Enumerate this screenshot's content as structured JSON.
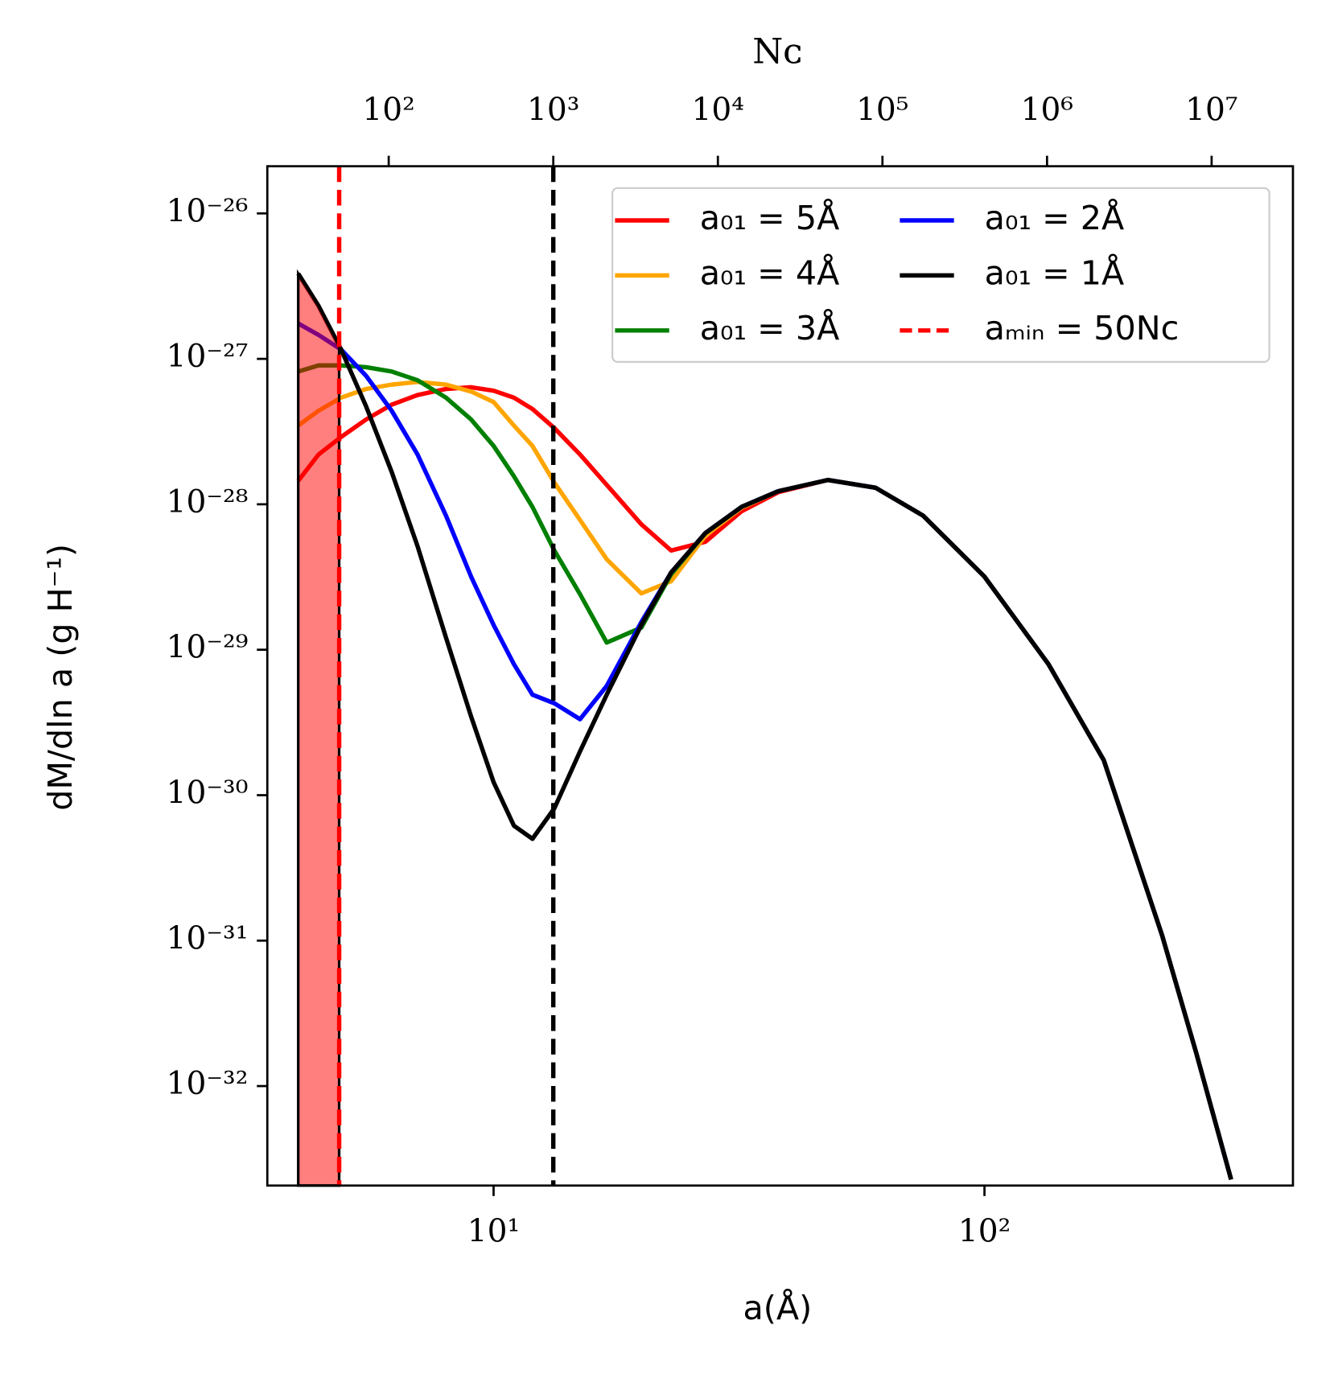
{
  "chart_data": {
    "type": "line",
    "xlabel": "a(Å)",
    "ylabel": "dM/dln a (g H⁻¹)",
    "x2label": "Nᴄ",
    "xscale": "log",
    "yscale": "log",
    "x2scale": "log",
    "xlim": [
      3.46,
      425
    ],
    "ylim": [
      2.07e-33,
      2.11e-26
    ],
    "x2lim": [
      18.3,
      31200000
    ],
    "xticks": [
      {
        "value": 10,
        "label": "10¹"
      },
      {
        "value": 100,
        "label": "10²"
      }
    ],
    "yticks": [
      {
        "value": 1e-26,
        "label": "10⁻²⁶"
      },
      {
        "value": 1e-27,
        "label": "10⁻²⁷"
      },
      {
        "value": 1e-28,
        "label": "10⁻²⁸"
      },
      {
        "value": 1e-29,
        "label": "10⁻²⁹"
      },
      {
        "value": 1e-30,
        "label": "10⁻³⁰"
      },
      {
        "value": 1e-31,
        "label": "10⁻³¹"
      },
      {
        "value": 1e-32,
        "label": "10⁻³²"
      }
    ],
    "x2ticks": [
      {
        "value": 100,
        "label": "10²"
      },
      {
        "value": 1000,
        "label": "10³"
      },
      {
        "value": 10000,
        "label": "10⁴"
      },
      {
        "value": 100000,
        "label": "10⁵"
      },
      {
        "value": 1000000,
        "label": "10⁶"
      },
      {
        "value": 10000000,
        "label": "10⁷"
      }
    ],
    "x": [
      4,
      4.4,
      4.89,
      5.5,
      6.2,
      7,
      8,
      9,
      10,
      11,
      12,
      13.3,
      15,
      17,
      20,
      23,
      27,
      32,
      38,
      48,
      60,
      75,
      100,
      135,
      175,
      230,
      270,
      318
    ],
    "series": [
      {
        "name": "a₀₁ = 5Å",
        "color": "#ff0000",
        "values": [
          1.45e-28,
          2.2e-28,
          2.9e-28,
          3.83e-28,
          4.84e-28,
          5.64e-28,
          6.21e-28,
          6.38e-28,
          6.04e-28,
          5.41e-28,
          4.52e-28,
          3.34e-28,
          2.2e-28,
          1.36e-28,
          7.28e-29,
          4.81e-29,
          5.52e-29,
          8.95e-29,
          1.21e-28,
          1.47e-28,
          1.3e-28,
          8.35e-29,
          3.18e-29,
          7.96e-30,
          1.74e-30,
          1.09e-31,
          1.69e-32,
          2.28e-33
        ]
      },
      {
        "name": "a₀₁ = 4Å",
        "color": "#ffa500",
        "values": [
          3.48e-28,
          4.4e-28,
          5.41e-28,
          6.21e-28,
          6.65e-28,
          6.94e-28,
          6.65e-28,
          5.96e-28,
          5.05e-28,
          3.48e-28,
          2.52e-28,
          1.41e-28,
          7.8e-29,
          4.19e-29,
          2.44e-29,
          2.96e-29,
          6.08e-29,
          9.46e-29,
          1.23e-28,
          1.47e-28,
          1.3e-28,
          8.35e-29,
          3.18e-29,
          7.96e-30,
          1.74e-30,
          1.09e-31,
          1.69e-32,
          2.28e-33
        ]
      },
      {
        "name": "a₀₁ = 3Å",
        "color": "#008000",
        "values": [
          8.18e-28,
          9.01e-28,
          9.01e-28,
          8.77e-28,
          8.18e-28,
          7.13e-28,
          5.41e-28,
          3.83e-28,
          2.52e-28,
          1.56e-28,
          9.59e-29,
          4.81e-29,
          2.41e-29,
          1.12e-29,
          1.42e-29,
          3.31e-29,
          6.34e-29,
          9.59e-29,
          1.23e-28,
          1.47e-28,
          1.3e-28,
          8.35e-29,
          3.18e-29,
          7.96e-30,
          1.74e-30,
          1.09e-31,
          1.69e-32,
          2.28e-33
        ]
      },
      {
        "name": "a₀₁ = 2Å",
        "color": "#0000ff",
        "values": [
          1.75e-27,
          1.46e-27,
          1.16e-27,
          7.64e-28,
          4.4e-28,
          2.2e-28,
          8.35e-29,
          3.18e-29,
          1.48e-29,
          7.96e-30,
          4.91e-30,
          4.28e-30,
          3.33e-30,
          5.64e-30,
          1.55e-29,
          3.4e-29,
          6.34e-29,
          9.59e-29,
          1.23e-28,
          1.47e-28,
          1.3e-28,
          8.35e-29,
          3.18e-29,
          7.96e-30,
          1.74e-30,
          1.09e-31,
          1.69e-32,
          2.28e-33
        ]
      },
      {
        "name": "a₀₁ = 1Å",
        "color": "#000000",
        "values": [
          3.85e-27,
          2.31e-27,
          1.16e-27,
          4.71e-28,
          1.67e-28,
          5.15e-29,
          1.21e-29,
          3.47e-30,
          1.23e-30,
          6.17e-31,
          5.01e-31,
          8.13e-31,
          2e-30,
          4.91e-30,
          1.48e-29,
          3.4e-29,
          6.34e-29,
          9.59e-29,
          1.23e-28,
          1.47e-28,
          1.3e-28,
          8.35e-29,
          3.18e-29,
          7.96e-30,
          1.74e-30,
          1.09e-31,
          1.69e-32,
          2.28e-33
        ]
      }
    ],
    "vlines": [
      {
        "name": "aₘᵢₙ = 50Nᴄ",
        "x2": 50,
        "color": "#ff0000"
      },
      {
        "x2": 1000,
        "color": "#000000"
      }
    ],
    "shade_color": "#ff0000",
    "legend": "upper right",
    "legend_columns": 2
  }
}
